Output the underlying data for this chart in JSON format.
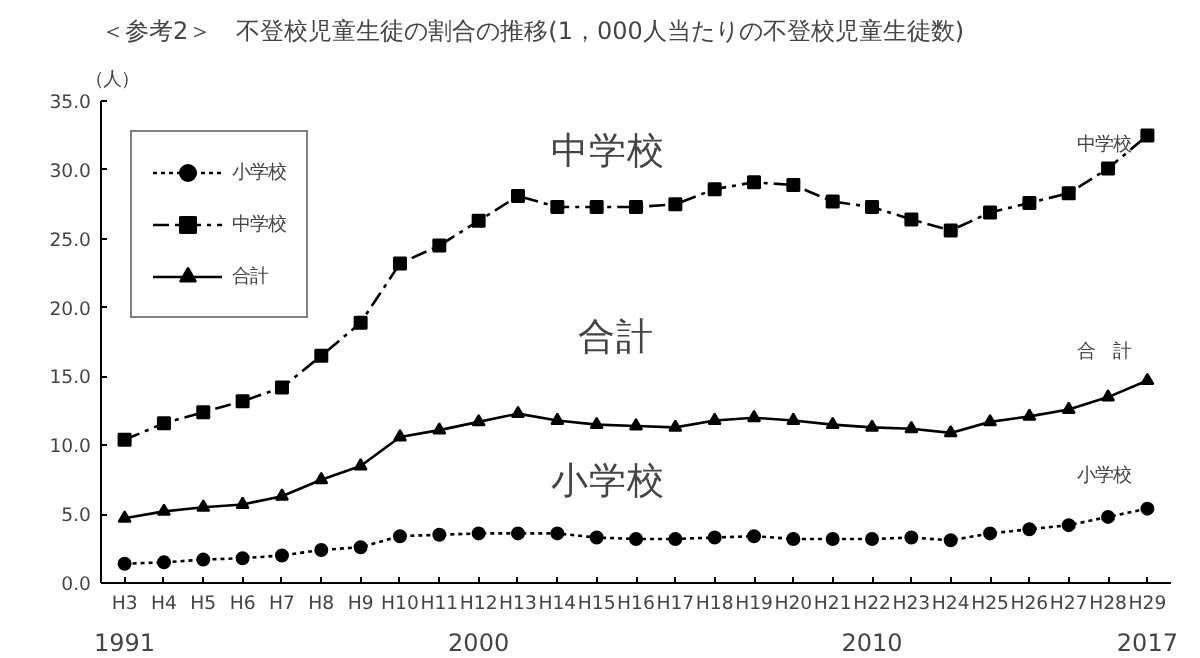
{
  "chart_data": {
    "type": "line",
    "title": "＜参考2＞　不登校児童生徒の割合の推移(1，000人当たりの不登校児童生徒数)",
    "ylabel": "（人）",
    "categories": [
      "H3",
      "H4",
      "H5",
      "H6",
      "H7",
      "H8",
      "H9",
      "H10",
      "H11",
      "H12",
      "H13",
      "H14",
      "H15",
      "H16",
      "H17",
      "H18",
      "H19",
      "H20",
      "H21",
      "H22",
      "H23",
      "H24",
      "H25",
      "H26",
      "H27",
      "H28",
      "H29"
    ],
    "series": [
      {
        "name": "小学校",
        "color": "#000000",
        "marker": "circle",
        "line_style": "dotted",
        "values": [
          1.4,
          1.5,
          1.7,
          1.8,
          2.0,
          2.4,
          2.6,
          3.4,
          3.5,
          3.6,
          3.6,
          3.6,
          3.3,
          3.2,
          3.2,
          3.3,
          3.4,
          3.2,
          3.2,
          3.2,
          3.3,
          3.1,
          3.6,
          3.9,
          4.2,
          4.8,
          5.4
        ]
      },
      {
        "name": "中学校",
        "color": "#000000",
        "marker": "square",
        "line_style": "dashdot",
        "values": [
          10.4,
          11.6,
          12.4,
          13.2,
          14.2,
          16.5,
          18.9,
          23.2,
          24.5,
          26.3,
          28.1,
          27.3,
          27.3,
          27.3,
          27.5,
          28.6,
          29.1,
          28.9,
          27.7,
          27.3,
          26.4,
          25.6,
          26.9,
          27.6,
          28.3,
          30.1,
          32.5
        ]
      },
      {
        "name": "合計",
        "color": "#000000",
        "marker": "triangle",
        "line_style": "solid",
        "values": [
          4.7,
          5.2,
          5.5,
          5.7,
          6.3,
          7.5,
          8.5,
          10.6,
          11.1,
          11.7,
          12.3,
          11.8,
          11.5,
          11.4,
          11.3,
          11.8,
          12.0,
          11.8,
          11.5,
          11.3,
          11.2,
          10.9,
          11.7,
          12.1,
          12.6,
          13.5,
          14.7
        ]
      }
    ],
    "ylim": [
      0,
      35
    ],
    "yticks": [
      {
        "value": 0,
        "label": "0.0"
      },
      {
        "value": 5,
        "label": "5.0"
      },
      {
        "value": 10,
        "label": "10.0"
      },
      {
        "value": 15,
        "label": "15.0"
      },
      {
        "value": 20,
        "label": "20.0"
      },
      {
        "value": 25,
        "label": "25.0"
      },
      {
        "value": 30,
        "label": "30.0"
      },
      {
        "value": 35,
        "label": "35.0"
      }
    ],
    "grid": false,
    "legend": "top left",
    "annotations": [
      "中学校",
      "合計",
      "小学校",
      "中学校",
      "合　計",
      "小学校",
      "1991",
      "2000",
      "2010",
      "2017"
    ]
  }
}
